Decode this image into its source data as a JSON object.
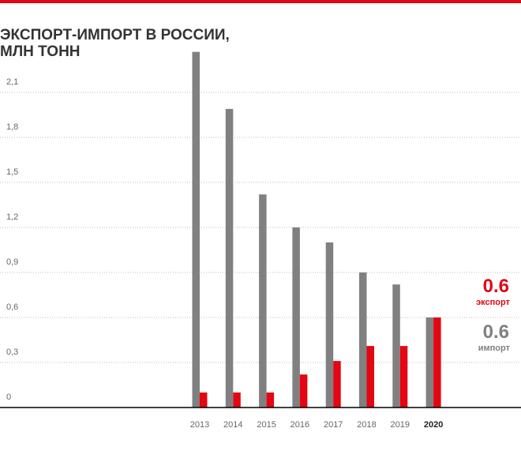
{
  "chart_data": {
    "type": "bar",
    "title": [
      "ЭКСПОРТ-ИМПОРТ В РОССИИ,",
      "МЛН ТОНН"
    ],
    "categories": [
      "2013",
      "2014",
      "2015",
      "2016",
      "2017",
      "2018",
      "2019",
      "2020"
    ],
    "highlight_index": 7,
    "series": [
      {
        "name": "импорт",
        "color": "#808080",
        "values": [
          2.37,
          1.99,
          1.42,
          1.2,
          1.1,
          0.9,
          0.82,
          0.6
        ]
      },
      {
        "name": "экспорт",
        "color": "#e30613",
        "values": [
          0.1,
          0.1,
          0.1,
          0.22,
          0.31,
          0.41,
          0.41,
          0.6
        ]
      }
    ],
    "ylim": [
      0,
      2.4
    ],
    "yticks": [
      0,
      {
        "value": 0.3,
        "label": "0,3"
      },
      {
        "value": 0.6,
        "label": "0,6"
      },
      {
        "value": 0.9,
        "label": "0,9"
      },
      {
        "value": 1.2,
        "label": "1,2"
      },
      {
        "value": 1.5,
        "label": "1,5"
      },
      {
        "value": 1.8,
        "label": "1,8"
      },
      {
        "value": 2.1,
        "label": "2,1"
      }
    ],
    "grid": true
  }
}
